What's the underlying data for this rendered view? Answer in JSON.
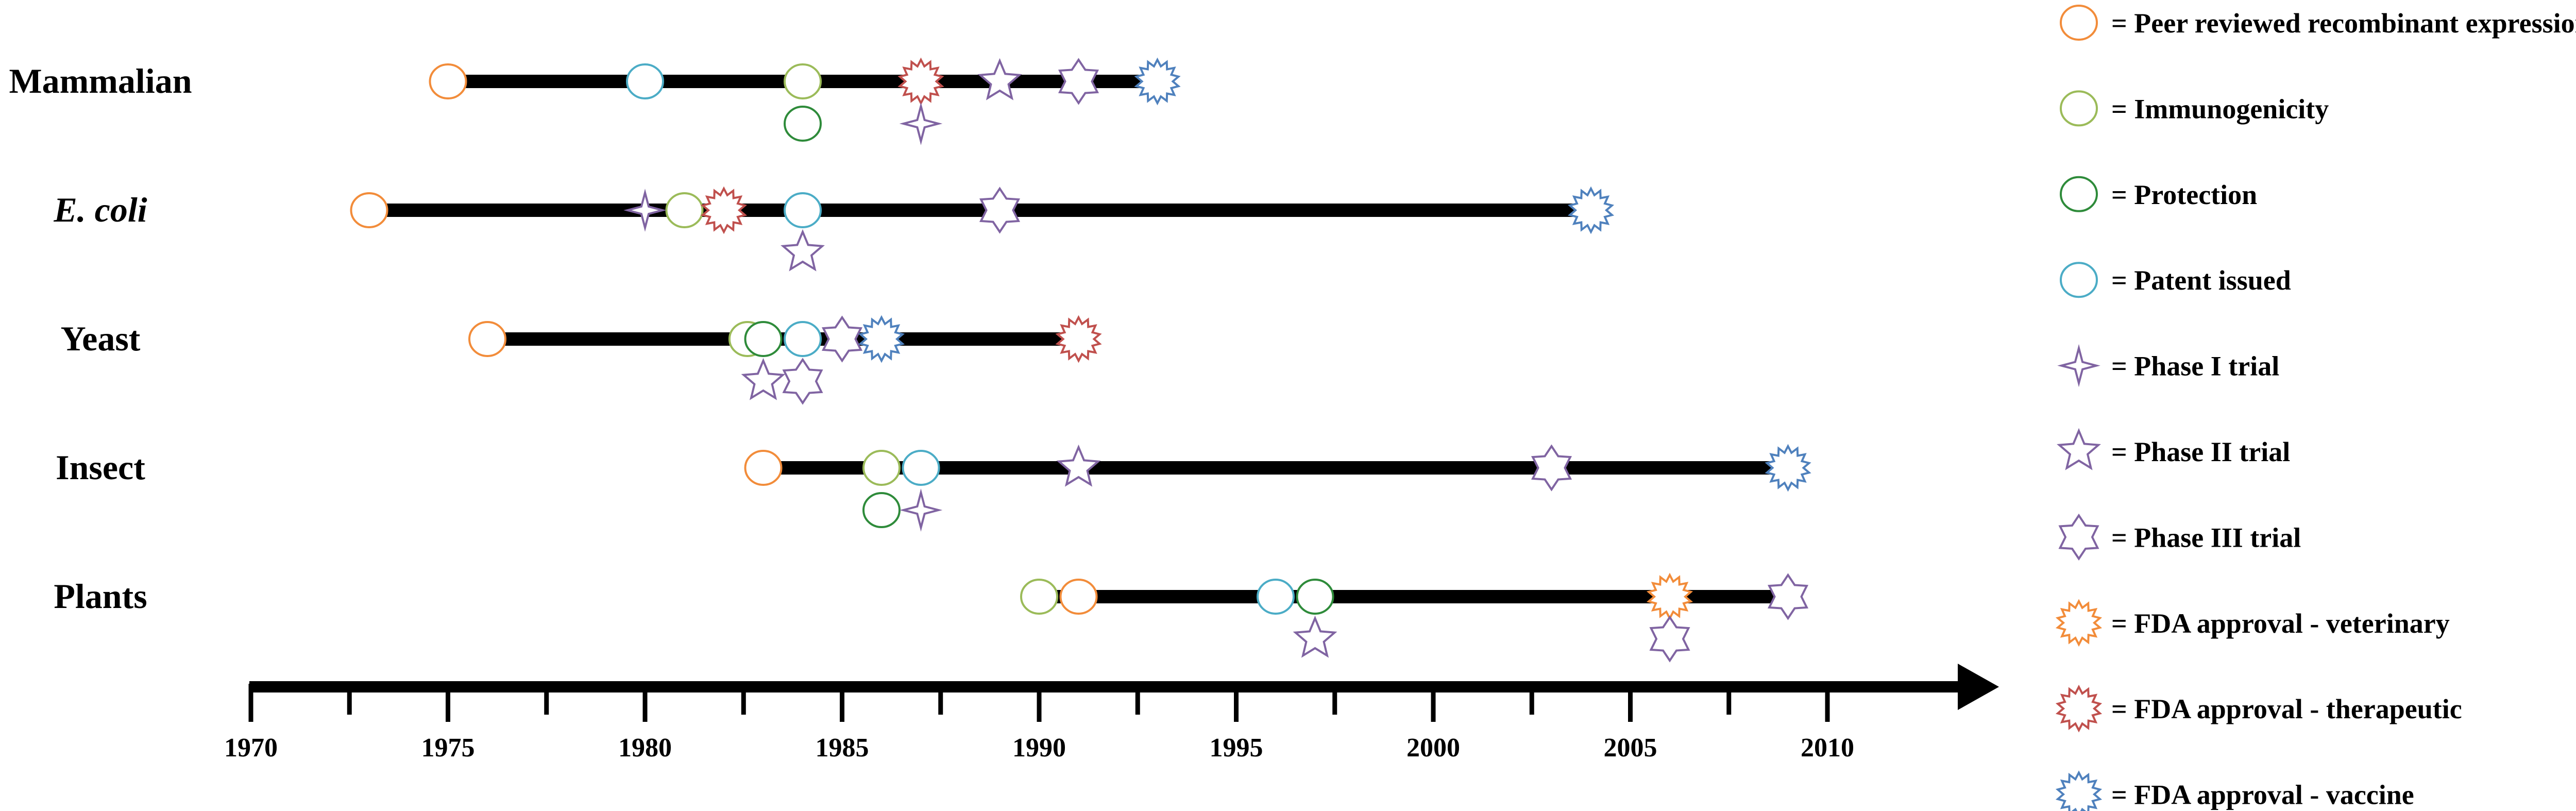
{
  "chart_data": {
    "type": "scatter",
    "title": "",
    "xlabel": "",
    "ylabel": "",
    "xlim": [
      1970,
      2013
    ],
    "x_ticks": [
      1970,
      1975,
      1980,
      1985,
      1990,
      1995,
      2000,
      2005,
      2010
    ],
    "grid": false,
    "legend_position": "right",
    "markers": {
      "peer_reviewed": {
        "label": "= Peer reviewed recombinant expression",
        "shape": "circle",
        "color": "#F28C3A"
      },
      "immunogenicity": {
        "label": "= Immunogenicity",
        "shape": "circle",
        "color": "#9BBB59"
      },
      "protection": {
        "label": "= Protection",
        "shape": "circle",
        "color": "#2E8B3A"
      },
      "patent": {
        "label": "= Patent issued",
        "shape": "circle",
        "color": "#4BACC6"
      },
      "phase1": {
        "label": "= Phase I trial",
        "shape": "star4",
        "color": "#8064A2"
      },
      "phase2": {
        "label": "= Phase II trial",
        "shape": "star5",
        "color": "#8064A2"
      },
      "phase3": {
        "label": "= Phase III trial",
        "shape": "star6",
        "color": "#8064A2"
      },
      "fda_vet": {
        "label": "= FDA approval - veterinary",
        "shape": "burst",
        "color": "#F28C3A"
      },
      "fda_ther": {
        "label": "= FDA approval - therapeutic",
        "shape": "burst",
        "color": "#C0504D"
      },
      "fda_vac": {
        "label": "= FDA approval - vaccine",
        "shape": "burst",
        "color": "#4F81BD"
      }
    },
    "series": [
      {
        "name": "Mammalian",
        "italic": false,
        "bar": [
          1975,
          1993
        ],
        "events": [
          {
            "type": "peer_reviewed",
            "year": 1975,
            "row": 0
          },
          {
            "type": "patent",
            "year": 1980,
            "row": 0
          },
          {
            "type": "immunogenicity",
            "year": 1984,
            "row": 0
          },
          {
            "type": "protection",
            "year": 1984,
            "row": 1
          },
          {
            "type": "fda_ther",
            "year": 1987,
            "row": 0
          },
          {
            "type": "phase1",
            "year": 1987,
            "row": 1
          },
          {
            "type": "phase2",
            "year": 1989,
            "row": 0
          },
          {
            "type": "phase3",
            "year": 1991,
            "row": 0
          },
          {
            "type": "fda_vac",
            "year": 1993,
            "row": 0
          }
        ]
      },
      {
        "name": "E. coli",
        "italic": true,
        "bar": [
          1973,
          2004
        ],
        "events": [
          {
            "type": "peer_reviewed",
            "year": 1973,
            "row": 0
          },
          {
            "type": "phase1",
            "year": 1980,
            "row": 0
          },
          {
            "type": "immunogenicity",
            "year": 1981,
            "row": 0
          },
          {
            "type": "fda_ther",
            "year": 1982,
            "row": 0
          },
          {
            "type": "patent",
            "year": 1984,
            "row": 0
          },
          {
            "type": "phase2",
            "year": 1984,
            "row": 1
          },
          {
            "type": "phase3",
            "year": 1989,
            "row": 0
          },
          {
            "type": "fda_vac",
            "year": 2004,
            "row": 0
          }
        ]
      },
      {
        "name": "Yeast",
        "italic": false,
        "bar": [
          1976,
          1991
        ],
        "events": [
          {
            "type": "peer_reviewed",
            "year": 1976,
            "row": 0
          },
          {
            "type": "immunogenicity",
            "year": 1982.6,
            "row": 0
          },
          {
            "type": "protection",
            "year": 1983,
            "row": 0
          },
          {
            "type": "phase2",
            "year": 1983,
            "row": 1
          },
          {
            "type": "patent",
            "year": 1984,
            "row": 0
          },
          {
            "type": "phase3",
            "year": 1984,
            "row": 1
          },
          {
            "type": "phase3",
            "year": 1985,
            "row": 0
          },
          {
            "type": "fda_vac",
            "year": 1986,
            "row": 0
          },
          {
            "type": "fda_ther",
            "year": 1991,
            "row": 0
          }
        ]
      },
      {
        "name": "Insect",
        "italic": false,
        "bar": [
          1983,
          2009
        ],
        "events": [
          {
            "type": "peer_reviewed",
            "year": 1983,
            "row": 0
          },
          {
            "type": "immunogenicity",
            "year": 1986,
            "row": 0
          },
          {
            "type": "protection",
            "year": 1986,
            "row": 1
          },
          {
            "type": "patent",
            "year": 1987,
            "row": 0
          },
          {
            "type": "phase1",
            "year": 1987,
            "row": 1
          },
          {
            "type": "phase2",
            "year": 1991,
            "row": 0
          },
          {
            "type": "phase3",
            "year": 2003,
            "row": 0
          },
          {
            "type": "fda_vac",
            "year": 2009,
            "row": 0
          }
        ]
      },
      {
        "name": "Plants",
        "italic": false,
        "bar": [
          1990,
          2009
        ],
        "events": [
          {
            "type": "immunogenicity",
            "year": 1990,
            "row": 0
          },
          {
            "type": "peer_reviewed",
            "year": 1991,
            "row": 0
          },
          {
            "type": "patent",
            "year": 1996,
            "row": 0
          },
          {
            "type": "protection",
            "year": 1997,
            "row": 0
          },
          {
            "type": "phase2",
            "year": 1997,
            "row": 1
          },
          {
            "type": "fda_vet",
            "year": 2006,
            "row": 0
          },
          {
            "type": "phase3",
            "year": 2006,
            "row": 1
          },
          {
            "type": "phase3",
            "year": 2009,
            "row": 0
          }
        ]
      }
    ]
  }
}
